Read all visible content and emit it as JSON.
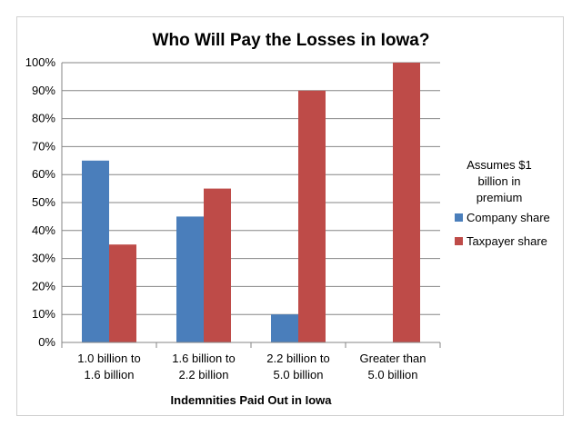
{
  "chart_data": {
    "type": "bar",
    "title": "Who Will Pay the Losses in Iowa?",
    "xlabel": "Indemnities Paid Out in Iowa",
    "ylabel": "",
    "ylim": [
      0,
      100
    ],
    "yticks": [
      "0%",
      "10%",
      "20%",
      "30%",
      "40%",
      "50%",
      "60%",
      "70%",
      "80%",
      "90%",
      "100%"
    ],
    "categories": [
      [
        "1.0 billion to",
        "1.6 billion"
      ],
      [
        "1.6 billion  to",
        "2.2 billion"
      ],
      [
        "2.2 billion to",
        "5.0 billion"
      ],
      [
        "Greater than",
        "5.0 billion"
      ]
    ],
    "series": [
      {
        "name": "Company share",
        "values": [
          65,
          45,
          10,
          0
        ],
        "color": "#4a7ebb"
      },
      {
        "name": "Taxpayer share",
        "values": [
          35,
          55,
          90,
          100
        ],
        "color": "#be4b48"
      }
    ],
    "legend_title": [
      "Assumes $1",
      "billion in",
      "premium"
    ],
    "grid": true,
    "legend_position": "right"
  }
}
